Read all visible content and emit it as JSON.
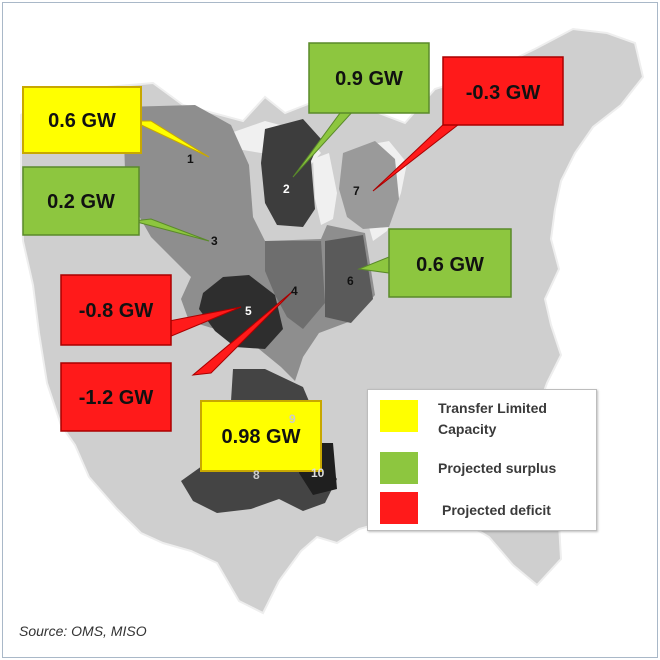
{
  "source_text": "Source: OMS, MISO",
  "callouts": [
    {
      "zone": "1",
      "label": "0.6 GW",
      "category": "transfer_limited"
    },
    {
      "zone": "2",
      "label": "0.9 GW",
      "category": "surplus"
    },
    {
      "zone": "7",
      "label": "-0.3 GW",
      "category": "deficit"
    },
    {
      "zone": "3",
      "label": "0.2 GW",
      "category": "surplus"
    },
    {
      "zone": "6",
      "label": "0.6 GW",
      "category": "surplus"
    },
    {
      "zone": "5",
      "label": "-0.8 GW",
      "category": "deficit"
    },
    {
      "zone": "4",
      "label": "-1.2 GW",
      "category": "deficit"
    },
    {
      "zone": "8",
      "label": "0.98 GW",
      "category": "transfer_limited"
    }
  ],
  "zones": [
    {
      "number": "1"
    },
    {
      "number": "2"
    },
    {
      "number": "3"
    },
    {
      "number": "4"
    },
    {
      "number": "5"
    },
    {
      "number": "6"
    },
    {
      "number": "7"
    },
    {
      "number": "8"
    },
    {
      "number": "9"
    },
    {
      "number": "10"
    }
  ],
  "legend": {
    "items": [
      {
        "label_line1": "Transfer Limited",
        "label_line2": "Capacity",
        "color": "#ffff00"
      },
      {
        "label_line1": "Projected surplus",
        "label_line2": "",
        "color": "#8dc63f"
      },
      {
        "label_line1": "Projected deficit",
        "label_line2": "",
        "color": "#ff1a1a"
      }
    ]
  },
  "colors": {
    "transfer_limited": "#ffff00",
    "surplus": "#8dc63f",
    "deficit": "#ff1a1a",
    "map_dark": "#3d3d3d",
    "map_mid": "#8e8e8e",
    "map_light": "#c8c8c8"
  }
}
